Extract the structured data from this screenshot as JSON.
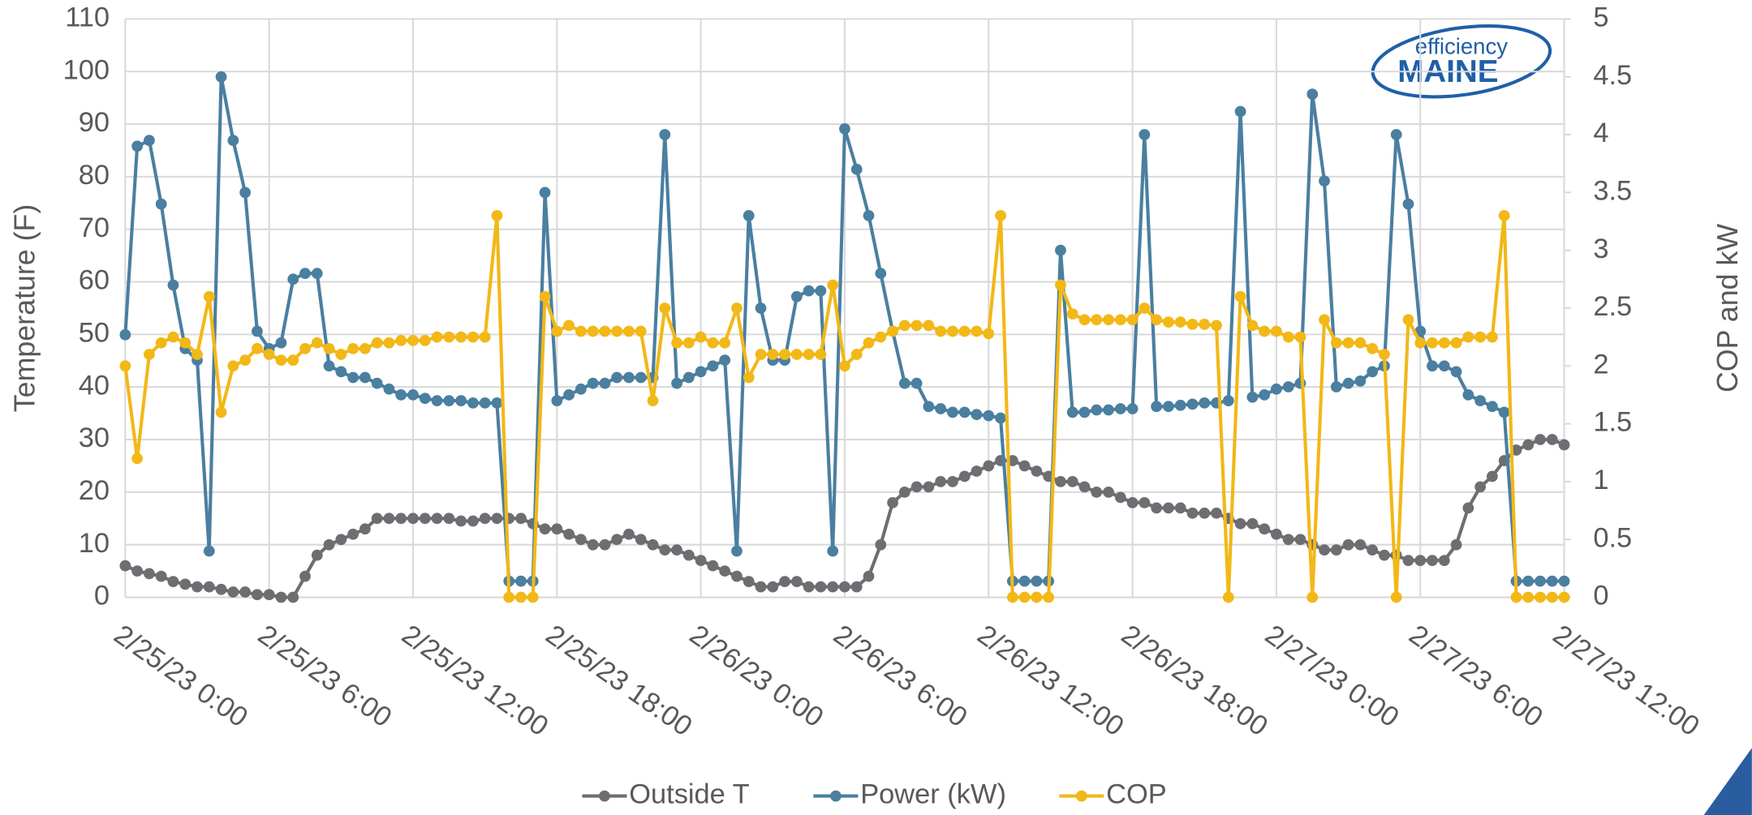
{
  "chart_data": {
    "type": "line",
    "ylabel": "Temperature (F)",
    "y2label": "COP and kW",
    "logo": [
      "efficiency",
      "MAINE"
    ],
    "grid": true,
    "legend": "bottom",
    "xlim": [
      0,
      60
    ],
    "xticks": [
      {
        "value": 0,
        "label": "2/25/23 0:00"
      },
      {
        "value": 6,
        "label": "2/25/23 6:00"
      },
      {
        "value": 12,
        "label": "2/25/23 12:00"
      },
      {
        "value": 18,
        "label": "2/25/23 18:00"
      },
      {
        "value": 24,
        "label": "2/26/23 0:00"
      },
      {
        "value": 30,
        "label": "2/26/23 6:00"
      },
      {
        "value": 36,
        "label": "2/26/23 12:00"
      },
      {
        "value": 42,
        "label": "2/26/23 18:00"
      },
      {
        "value": 48,
        "label": "2/27/23 0:00"
      },
      {
        "value": 54,
        "label": "2/27/23 6:00"
      },
      {
        "value": 60,
        "label": "2/27/23 12:00"
      }
    ],
    "ylim": [
      0,
      110
    ],
    "yticks": [
      0,
      10,
      20,
      30,
      40,
      50,
      60,
      70,
      80,
      90,
      100,
      110
    ],
    "y2lim": [
      0,
      5
    ],
    "y2ticks": [
      0,
      0.5,
      1,
      1.5,
      2,
      2.5,
      3,
      3.5,
      4,
      4.5,
      5
    ],
    "x": [
      0,
      0.5,
      1,
      1.5,
      2,
      2.5,
      3,
      3.5,
      4,
      4.5,
      5,
      5.5,
      6,
      6.5,
      7,
      7.5,
      8,
      8.5,
      9,
      9.5,
      10,
      10.5,
      11,
      11.5,
      12,
      12.5,
      13,
      13.5,
      14,
      14.5,
      15,
      15.5,
      16,
      16.5,
      17,
      17.5,
      18,
      18.5,
      19,
      19.5,
      20,
      20.5,
      21,
      21.5,
      22,
      22.5,
      23,
      23.5,
      24,
      24.5,
      25,
      25.5,
      26,
      26.5,
      27,
      27.5,
      28,
      28.5,
      29,
      29.5,
      30,
      30.5,
      31,
      31.5,
      32,
      32.5,
      33,
      33.5,
      34,
      34.5,
      35,
      35.5,
      36,
      36.5,
      37,
      37.5,
      38,
      38.5,
      39,
      39.5,
      40,
      40.5,
      41,
      41.5,
      42,
      42.5,
      43,
      43.5,
      44,
      44.5,
      45,
      45.5,
      46,
      46.5,
      47,
      47.5,
      48,
      48.5,
      49,
      49.5,
      50,
      50.5,
      51,
      51.5,
      52,
      52.5,
      53,
      53.5,
      54,
      54.5,
      55,
      55.5,
      56,
      56.5,
      57,
      57.5,
      58,
      58.5,
      59,
      59.5,
      60
    ],
    "series": [
      {
        "name": "Outside T",
        "color": "#6d6e71",
        "values": [
          6,
          5,
          4.5,
          4,
          3,
          2.5,
          2,
          2,
          1.5,
          1,
          1,
          0.5,
          0.5,
          0,
          0,
          4,
          8,
          10,
          11,
          12,
          13,
          15,
          15,
          15,
          15,
          15,
          15,
          15,
          14.5,
          14.5,
          15,
          15,
          15,
          15,
          14,
          13,
          13,
          12,
          11,
          10,
          10,
          11,
          12,
          11,
          10,
          9,
          9,
          8,
          7,
          6,
          5,
          4,
          3,
          2,
          2,
          3,
          3,
          2,
          2,
          2,
          2,
          2,
          4,
          10,
          18,
          20,
          21,
          21,
          22,
          22,
          23,
          24,
          25,
          26,
          26,
          25,
          24,
          23,
          22,
          22,
          21,
          20,
          20,
          19,
          18,
          18,
          17,
          17,
          17,
          16,
          16,
          16,
          15,
          14,
          14,
          13,
          12,
          11,
          11,
          10,
          9,
          9,
          10,
          10,
          9,
          8,
          8,
          7,
          7,
          7,
          7,
          10,
          17,
          21,
          23,
          26,
          28,
          29,
          30,
          30,
          29
        ]
      },
      {
        "name": "Power (kW)",
        "color": "#4a7fa0",
        "axis": "y2",
        "values": [
          2.27,
          3.9,
          3.95,
          3.4,
          2.7,
          2.15,
          2.05,
          0.4,
          4.5,
          3.95,
          3.5,
          2.3,
          2.15,
          2.2,
          2.75,
          2.8,
          2.8,
          2.0,
          1.95,
          1.9,
          1.9,
          1.85,
          1.8,
          1.75,
          1.75,
          1.72,
          1.7,
          1.7,
          1.7,
          1.68,
          1.68,
          1.68,
          0.14,
          0.14,
          0.14,
          3.5,
          1.7,
          1.75,
          1.8,
          1.85,
          1.85,
          1.9,
          1.9,
          1.9,
          1.9,
          4.0,
          1.85,
          1.9,
          1.95,
          2.0,
          2.05,
          0.4,
          3.3,
          2.5,
          2.05,
          2.05,
          2.6,
          2.65,
          2.65,
          0.4,
          4.05,
          3.7,
          3.3,
          2.8,
          2.3,
          1.85,
          1.85,
          1.65,
          1.63,
          1.6,
          1.6,
          1.58,
          1.57,
          1.55,
          0.14,
          0.14,
          0.14,
          0.14,
          3.0,
          1.6,
          1.6,
          1.62,
          1.62,
          1.63,
          1.63,
          4.0,
          1.65,
          1.65,
          1.66,
          1.67,
          1.68,
          1.68,
          1.7,
          4.2,
          1.73,
          1.75,
          1.8,
          1.82,
          1.85,
          4.35,
          3.6,
          1.82,
          1.85,
          1.87,
          1.95,
          2.0,
          4.0,
          3.4,
          2.3,
          2.0,
          2.0,
          1.95,
          1.75,
          1.7,
          1.65,
          1.6,
          0.14,
          0.14,
          0.14,
          0.14,
          0.14
        ]
      },
      {
        "name": "COP",
        "color": "#f2b817",
        "axis": "y2",
        "values": [
          2.0,
          1.2,
          2.1,
          2.2,
          2.25,
          2.2,
          2.1,
          2.6,
          1.6,
          2.0,
          2.05,
          2.15,
          2.1,
          2.05,
          2.05,
          2.15,
          2.2,
          2.15,
          2.1,
          2.15,
          2.15,
          2.2,
          2.2,
          2.22,
          2.22,
          2.22,
          2.25,
          2.25,
          2.25,
          2.25,
          2.25,
          3.3,
          0,
          0,
          0,
          2.6,
          2.3,
          2.35,
          2.3,
          2.3,
          2.3,
          2.3,
          2.3,
          2.3,
          1.7,
          2.5,
          2.2,
          2.2,
          2.25,
          2.2,
          2.2,
          2.5,
          1.9,
          2.1,
          2.1,
          2.1,
          2.1,
          2.1,
          2.1,
          2.7,
          2.0,
          2.1,
          2.2,
          2.25,
          2.3,
          2.35,
          2.35,
          2.35,
          2.3,
          2.3,
          2.3,
          2.3,
          2.28,
          3.3,
          0,
          0,
          0,
          0,
          2.7,
          2.45,
          2.4,
          2.4,
          2.4,
          2.4,
          2.4,
          2.5,
          2.4,
          2.38,
          2.38,
          2.36,
          2.36,
          2.35,
          0,
          2.6,
          2.35,
          2.3,
          2.3,
          2.25,
          2.25,
          0,
          2.4,
          2.2,
          2.2,
          2.2,
          2.15,
          2.1,
          0,
          2.4,
          2.2,
          2.2,
          2.2,
          2.2,
          2.25,
          2.25,
          2.25,
          3.3,
          0,
          0,
          0,
          0,
          0
        ]
      }
    ]
  }
}
